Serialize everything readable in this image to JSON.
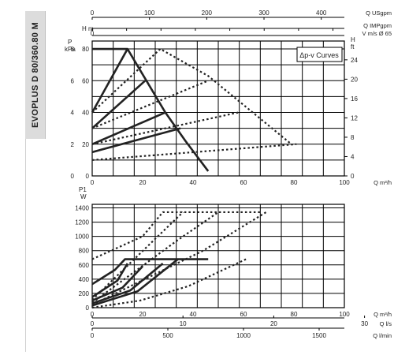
{
  "sidebar": {
    "title": "EVOPLUS D 80/360.80 M"
  },
  "chart_data": [
    {
      "type": "line",
      "chart": "head_vs_flow",
      "legend_box": "Δp-v Curves",
      "left_axis": {
        "labels": [
          "P",
          "kPa"
        ],
        "ticks": [
          0,
          2,
          4,
          6,
          8
        ]
      },
      "left_axis_2": {
        "label": "H m",
        "ticks": [
          0,
          20,
          40,
          60,
          80
        ]
      },
      "right_axis": {
        "labels": [
          "H",
          "ft"
        ],
        "ticks": [
          0,
          4,
          8,
          12,
          16,
          20,
          24
        ]
      },
      "x_axis": {
        "label": "Q m³/h",
        "ticks": [
          0,
          20,
          40,
          60,
          80,
          100
        ],
        "range": [
          0,
          100
        ]
      },
      "top_axes": [
        {
          "label": "Q USgpm",
          "ticks": [
            0,
            100,
            200,
            300,
            400
          ]
        },
        {
          "label": "Q IMPgpm",
          "ticks": []
        },
        {
          "label": "V m/s Ø 65",
          "ticks": [
            0
          ]
        }
      ],
      "ylim": [
        0,
        8.5
      ],
      "series": [
        {
          "style": "solid",
          "values": [
            [
              0,
              8.0
            ],
            [
              14,
              8.0
            ],
            [
              29,
              4.0
            ],
            [
              37,
              2.2
            ],
            [
              46,
              0.3
            ]
          ]
        },
        {
          "style": "solid",
          "values": [
            [
              0,
              4.0
            ],
            [
              14,
              8.0
            ]
          ]
        },
        {
          "style": "solid",
          "values": [
            [
              0,
              3.0
            ],
            [
              21,
              6.0
            ]
          ]
        },
        {
          "style": "solid",
          "values": [
            [
              0,
              2.0
            ],
            [
              29,
              4.0
            ]
          ]
        },
        {
          "style": "solid",
          "values": [
            [
              0,
              1.5
            ],
            [
              35,
              3.0
            ]
          ]
        },
        {
          "style": "dotted",
          "values": [
            [
              0,
              4.0
            ],
            [
              27,
              8.0
            ],
            [
              46,
              6.3
            ],
            [
              79,
              2.0
            ]
          ]
        },
        {
          "style": "dotted",
          "values": [
            [
              0,
              3.0
            ],
            [
              46,
              6.0
            ]
          ]
        },
        {
          "style": "dotted",
          "values": [
            [
              0,
              2.0
            ],
            [
              58,
              4.0
            ]
          ]
        },
        {
          "style": "dotted",
          "values": [
            [
              0,
              1.0
            ],
            [
              81,
              2.0
            ]
          ]
        }
      ]
    },
    {
      "type": "line",
      "chart": "power_vs_flow",
      "left_axis": {
        "labels": [
          "P1",
          "W"
        ],
        "ticks": [
          0,
          200,
          400,
          600,
          800,
          1000,
          1200,
          1400
        ]
      },
      "x_axis": {
        "label": "Q m³/h",
        "ticks": [
          0,
          20,
          40,
          60,
          80,
          100
        ],
        "range": [
          0,
          100
        ]
      },
      "bottom_axes": [
        {
          "label": "Q l/s",
          "ticks": [
            0,
            10,
            20,
            30
          ]
        },
        {
          "label": "Q l/min",
          "ticks": [
            0,
            500,
            1000,
            1500
          ]
        }
      ],
      "ylim": [
        0,
        1450
      ],
      "series": [
        {
          "style": "solid",
          "values": [
            [
              0,
              330
            ],
            [
              9,
              530
            ],
            [
              13,
              680
            ],
            [
              46,
              680
            ]
          ]
        },
        {
          "style": "solid",
          "values": [
            [
              0,
              150
            ],
            [
              10,
              380
            ],
            [
              14,
              620
            ]
          ]
        },
        {
          "style": "solid",
          "values": [
            [
              0,
              100
            ],
            [
              12,
              280
            ],
            [
              20,
              580
            ]
          ]
        },
        {
          "style": "solid",
          "values": [
            [
              0,
              60
            ],
            [
              15,
              240
            ],
            [
              28,
              620
            ]
          ]
        },
        {
          "style": "solid",
          "values": [
            [
              0,
              30
            ],
            [
              18,
              230
            ],
            [
              34,
              680
            ]
          ]
        },
        {
          "style": "dotted",
          "values": [
            [
              0,
              680
            ],
            [
              20,
              1000
            ],
            [
              28,
              1340
            ],
            [
              67,
              1340
            ]
          ]
        },
        {
          "style": "dotted",
          "values": [
            [
              0,
              110
            ],
            [
              26,
              1000
            ],
            [
              36,
              1340
            ]
          ]
        },
        {
          "style": "dotted",
          "values": [
            [
              0,
              70
            ],
            [
              34,
              950
            ],
            [
              50,
              1340
            ]
          ]
        },
        {
          "style": "dotted",
          "values": [
            [
              0,
              40
            ],
            [
              44,
              800
            ],
            [
              69,
              1340
            ]
          ]
        },
        {
          "style": "dotted",
          "values": [
            [
              0,
              0
            ],
            [
              19,
              100
            ],
            [
              38,
              300
            ],
            [
              61,
              680
            ]
          ]
        }
      ]
    }
  ]
}
